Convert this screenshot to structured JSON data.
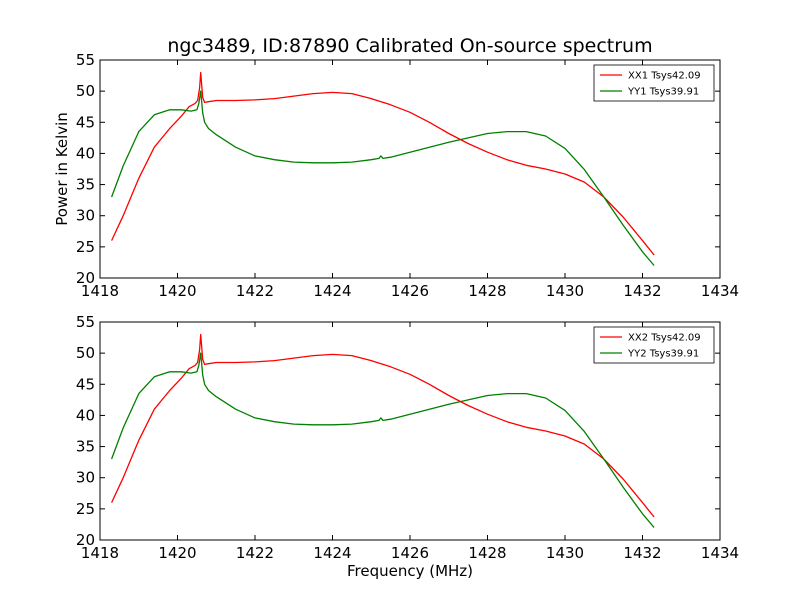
{
  "chart_data": [
    {
      "type": "line",
      "title": "ngc3489, ID:87890 Calibrated On-source spectrum",
      "xlabel": "",
      "ylabel": "Power in Kelvin",
      "xlim": [
        1418,
        1434
      ],
      "ylim": [
        20,
        55
      ],
      "xticks": [
        1418,
        1420,
        1422,
        1424,
        1426,
        1428,
        1430,
        1432,
        1434
      ],
      "yticks": [
        20,
        25,
        30,
        35,
        40,
        45,
        50,
        55
      ],
      "grid": false,
      "legend_position": "top-right",
      "series": [
        {
          "name": "XX1 Tsys42.09",
          "color": "#ff0000",
          "x": [
            1418.3,
            1418.6,
            1419.0,
            1419.4,
            1419.8,
            1420.1,
            1420.3,
            1420.45,
            1420.52,
            1420.57,
            1420.6,
            1420.65,
            1420.7,
            1420.8,
            1421.0,
            1421.5,
            1422.0,
            1422.5,
            1423.0,
            1423.5,
            1424.0,
            1424.5,
            1425.0,
            1425.5,
            1426.0,
            1426.5,
            1427.0,
            1427.5,
            1428.0,
            1428.5,
            1429.0,
            1429.5,
            1430.0,
            1430.5,
            1431.0,
            1431.5,
            1432.0,
            1432.3
          ],
          "values": [
            26.0,
            30.0,
            36.0,
            41.0,
            44.0,
            46.0,
            47.5,
            48.0,
            48.5,
            50.5,
            53.0,
            49.0,
            48.2,
            48.3,
            48.5,
            48.5,
            48.6,
            48.8,
            49.2,
            49.6,
            49.8,
            49.6,
            48.8,
            47.8,
            46.6,
            45.0,
            43.2,
            41.6,
            40.2,
            39.0,
            38.1,
            37.5,
            36.7,
            35.4,
            33.0,
            29.8,
            26.0,
            23.7
          ]
        },
        {
          "name": "YY1 Tsys39.91",
          "color": "#008000",
          "x": [
            1418.3,
            1418.6,
            1419.0,
            1419.4,
            1419.8,
            1420.1,
            1420.35,
            1420.5,
            1420.55,
            1420.6,
            1420.65,
            1420.7,
            1420.8,
            1421.0,
            1421.5,
            1422.0,
            1422.5,
            1423.0,
            1423.5,
            1424.0,
            1424.5,
            1425.0,
            1425.2,
            1425.25,
            1425.3,
            1425.5,
            1426.0,
            1426.5,
            1427.0,
            1427.5,
            1428.0,
            1428.5,
            1429.0,
            1429.5,
            1430.0,
            1430.5,
            1431.0,
            1431.5,
            1432.0,
            1432.3
          ],
          "values": [
            33.0,
            38.0,
            43.5,
            46.2,
            47.0,
            47.0,
            46.8,
            47.0,
            48.0,
            50.0,
            46.5,
            45.0,
            44.0,
            43.0,
            41.0,
            39.6,
            39.0,
            38.6,
            38.5,
            38.5,
            38.6,
            39.0,
            39.2,
            39.6,
            39.2,
            39.4,
            40.2,
            41.0,
            41.8,
            42.5,
            43.2,
            43.5,
            43.5,
            42.8,
            40.8,
            37.4,
            33.0,
            28.5,
            24.2,
            22.0
          ]
        }
      ]
    },
    {
      "type": "line",
      "title": "",
      "xlabel": "Frequency (MHz)",
      "ylabel": "",
      "xlim": [
        1418,
        1434
      ],
      "ylim": [
        20,
        55
      ],
      "xticks": [
        1418,
        1420,
        1422,
        1424,
        1426,
        1428,
        1430,
        1432,
        1434
      ],
      "yticks": [
        20,
        25,
        30,
        35,
        40,
        45,
        50,
        55
      ],
      "grid": false,
      "legend_position": "top-right",
      "series": [
        {
          "name": "XX2 Tsys42.09",
          "color": "#ff0000",
          "x": [
            1418.3,
            1418.6,
            1419.0,
            1419.4,
            1419.8,
            1420.1,
            1420.3,
            1420.45,
            1420.52,
            1420.57,
            1420.6,
            1420.65,
            1420.7,
            1420.8,
            1421.0,
            1421.5,
            1422.0,
            1422.5,
            1423.0,
            1423.5,
            1424.0,
            1424.5,
            1425.0,
            1425.5,
            1426.0,
            1426.5,
            1427.0,
            1427.5,
            1428.0,
            1428.5,
            1429.0,
            1429.5,
            1430.0,
            1430.5,
            1431.0,
            1431.5,
            1432.0,
            1432.3
          ],
          "values": [
            26.0,
            30.0,
            36.0,
            41.0,
            44.0,
            46.0,
            47.5,
            48.0,
            48.5,
            50.5,
            53.0,
            49.0,
            48.2,
            48.3,
            48.5,
            48.5,
            48.6,
            48.8,
            49.2,
            49.6,
            49.8,
            49.6,
            48.8,
            47.8,
            46.6,
            45.0,
            43.2,
            41.6,
            40.2,
            39.0,
            38.1,
            37.5,
            36.7,
            35.4,
            33.0,
            29.8,
            26.0,
            23.7
          ]
        },
        {
          "name": "YY2 Tsys39.91",
          "color": "#008000",
          "x": [
            1418.3,
            1418.6,
            1419.0,
            1419.4,
            1419.8,
            1420.1,
            1420.35,
            1420.5,
            1420.55,
            1420.6,
            1420.65,
            1420.7,
            1420.8,
            1421.0,
            1421.5,
            1422.0,
            1422.5,
            1423.0,
            1423.5,
            1424.0,
            1424.5,
            1425.0,
            1425.2,
            1425.25,
            1425.3,
            1425.5,
            1426.0,
            1426.5,
            1427.0,
            1427.5,
            1428.0,
            1428.5,
            1429.0,
            1429.5,
            1430.0,
            1430.5,
            1431.0,
            1431.5,
            1432.0,
            1432.3
          ],
          "values": [
            33.0,
            38.0,
            43.5,
            46.2,
            47.0,
            47.0,
            46.8,
            47.0,
            48.0,
            50.0,
            46.5,
            45.0,
            44.0,
            43.0,
            41.0,
            39.6,
            39.0,
            38.6,
            38.5,
            38.5,
            38.6,
            39.0,
            39.2,
            39.6,
            39.2,
            39.4,
            40.2,
            41.0,
            41.8,
            42.5,
            43.2,
            43.5,
            43.5,
            42.8,
            40.8,
            37.4,
            33.0,
            28.5,
            24.2,
            22.0
          ]
        }
      ]
    }
  ]
}
